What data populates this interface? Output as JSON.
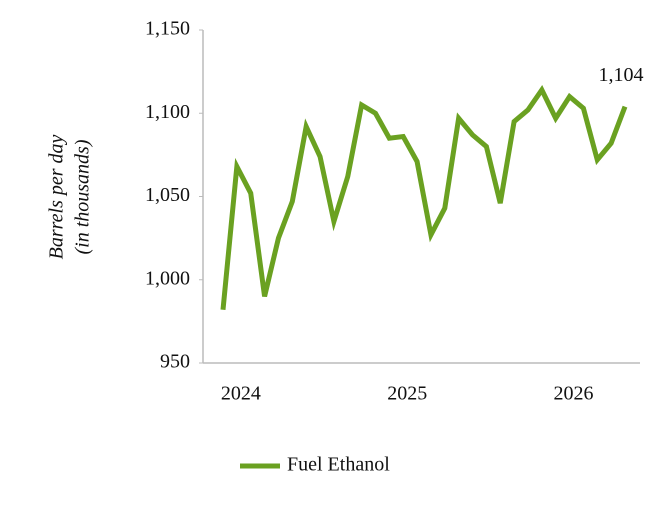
{
  "chart_data": {
    "type": "line",
    "y_label_lines": [
      "Barrels per day",
      "(in thousands)"
    ],
    "categories": [
      null,
      "2024",
      null,
      null,
      null,
      null,
      null,
      null,
      null,
      null,
      null,
      null,
      null,
      "2025",
      null,
      null,
      null,
      null,
      null,
      null,
      null,
      null,
      null,
      null,
      null,
      "2026",
      null,
      null,
      null,
      null
    ],
    "series": [
      {
        "name": "Fuel Ethanol",
        "color": "#6aa121",
        "values": [
          982,
          1068,
          1052,
          990,
          1025,
          1047,
          1092,
          1074,
          1035,
          1062,
          1105,
          1100,
          1085,
          1086,
          1071,
          1027,
          1043,
          1097,
          1087,
          1080,
          1046,
          1095,
          1102,
          1114,
          1097,
          1110,
          1103,
          1072,
          1082,
          1104
        ],
        "value_labels": [
          null,
          null,
          null,
          null,
          null,
          null,
          null,
          null,
          null,
          null,
          null,
          null,
          null,
          null,
          null,
          null,
          null,
          null,
          null,
          null,
          null,
          null,
          null,
          null,
          null,
          null,
          null,
          null,
          null,
          "1,104"
        ]
      }
    ],
    "ylim": [
      950,
      1150
    ],
    "yticks": [
      950,
      {
        "value": 1000,
        "label": "1,000"
      },
      {
        "value": 1050,
        "label": "1,050"
      },
      {
        "value": 1100,
        "label": "1,100"
      },
      {
        "value": 1150,
        "label": "1,150"
      }
    ],
    "grid": false,
    "legend": "bottom"
  }
}
